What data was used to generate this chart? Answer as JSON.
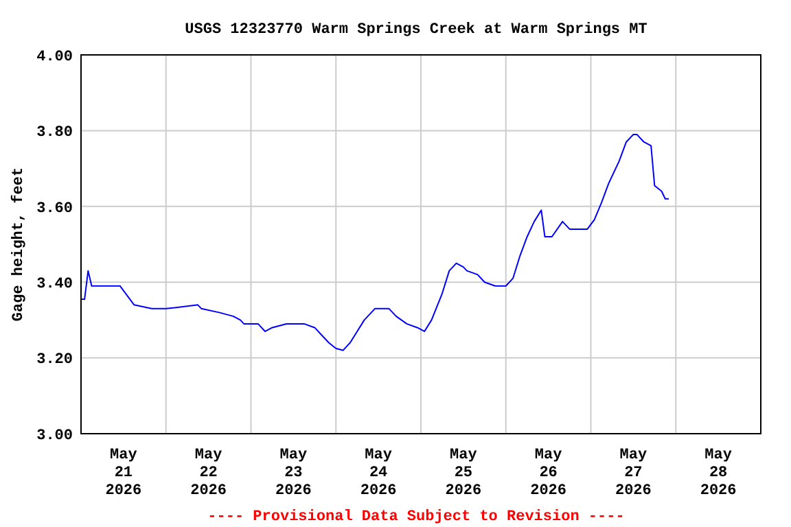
{
  "chart_data": {
    "type": "line",
    "title": "USGS 12323770 Warm Springs Creek at Warm Springs MT",
    "ylabel": "Gage height, feet",
    "annotations": [
      "---- Provisional Data Subject to Revision ----"
    ],
    "xlim": [
      "2026-05-21",
      "2026-05-29"
    ],
    "xticks": [
      {
        "value": "2026-05-22",
        "label": null
      },
      {
        "value": "2026-05-23",
        "label": null
      },
      {
        "value": "2026-05-24",
        "label": null
      },
      {
        "value": "2026-05-25",
        "label": null
      },
      {
        "value": "2026-05-26",
        "label": null
      },
      {
        "value": "2026-05-27",
        "label": null
      },
      {
        "value": "2026-05-28",
        "label": null
      },
      {
        "value": "2026-05-21T12:00",
        "label": "May\n21\n2026"
      },
      {
        "value": "2026-05-22T12:00",
        "label": "May\n22\n2026"
      },
      {
        "value": "2026-05-23T12:00",
        "label": "May\n23\n2026"
      },
      {
        "value": "2026-05-24T12:00",
        "label": "May\n24\n2026"
      },
      {
        "value": "2026-05-25T12:00",
        "label": "May\n25\n2026"
      },
      {
        "value": "2026-05-26T12:00",
        "label": "May\n26\n2026"
      },
      {
        "value": "2026-05-27T12:00",
        "label": "May\n27\n2026"
      },
      {
        "value": "2026-05-28T12:00",
        "label": "May\n28\n2026"
      }
    ],
    "ylim": [
      3.0,
      4.0
    ],
    "yticks": [
      {
        "value": 3.0,
        "label": "3.00"
      },
      {
        "value": 3.2,
        "label": "3.20"
      },
      {
        "value": 3.4,
        "label": "3.40"
      },
      {
        "value": 3.6,
        "label": "3.60"
      },
      {
        "value": 3.8,
        "label": "3.80"
      },
      {
        "value": 4.0,
        "label": "4.00"
      }
    ],
    "grid": true,
    "marker": "none",
    "line_style": "solid",
    "series": [
      {
        "color": "#0000ff",
        "x": [
          "2026-05-21T00:00",
          "2026-05-21T01:00",
          "2026-05-21T02:00",
          "2026-05-21T03:00",
          "2026-05-21T06:00",
          "2026-05-21T11:00",
          "2026-05-21T15:00",
          "2026-05-21T20:00",
          "2026-05-22T00:00",
          "2026-05-22T09:00",
          "2026-05-22T10:00",
          "2026-05-22T15:00",
          "2026-05-22T19:00",
          "2026-05-22T21:00",
          "2026-05-22T22:00",
          "2026-05-23T02:00",
          "2026-05-23T04:00",
          "2026-05-23T06:00",
          "2026-05-23T10:00",
          "2026-05-23T15:00",
          "2026-05-23T18:00",
          "2026-05-23T20:00",
          "2026-05-23T22:00",
          "2026-05-24T00:00",
          "2026-05-24T02:00",
          "2026-05-24T04:00",
          "2026-05-24T06:00",
          "2026-05-24T08:00",
          "2026-05-24T11:00",
          "2026-05-24T15:00",
          "2026-05-24T17:00",
          "2026-05-24T20:00",
          "2026-05-24T23:00",
          "2026-05-25T01:00",
          "2026-05-25T03:00",
          "2026-05-25T06:00",
          "2026-05-25T08:00",
          "2026-05-25T10:00",
          "2026-05-25T12:00",
          "2026-05-25T13:00",
          "2026-05-25T16:00",
          "2026-05-25T18:00",
          "2026-05-25T21:00",
          "2026-05-26T00:00",
          "2026-05-26T02:00",
          "2026-05-26T04:00",
          "2026-05-26T06:00",
          "2026-05-26T08:00",
          "2026-05-26T10:00",
          "2026-05-26T11:00",
          "2026-05-26T13:00",
          "2026-05-26T16:00",
          "2026-05-26T18:00",
          "2026-05-26T23:00",
          "2026-05-27T01:00",
          "2026-05-27T03:00",
          "2026-05-27T05:00",
          "2026-05-27T08:00",
          "2026-05-27T10:00",
          "2026-05-27T12:00",
          "2026-05-27T13:00",
          "2026-05-27T15:00",
          "2026-05-27T17:00",
          "2026-05-27T18:00",
          "2026-05-27T20:00",
          "2026-05-27T21:00",
          "2026-05-27T22:00"
        ],
        "values": [
          3.355,
          3.355,
          3.43,
          3.39,
          3.39,
          3.39,
          3.34,
          3.33,
          3.33,
          3.34,
          3.33,
          3.32,
          3.31,
          3.3,
          3.29,
          3.29,
          3.27,
          3.28,
          3.29,
          3.29,
          3.28,
          3.26,
          3.24,
          3.225,
          3.22,
          3.24,
          3.27,
          3.3,
          3.33,
          3.33,
          3.31,
          3.29,
          3.28,
          3.27,
          3.3,
          3.37,
          3.43,
          3.45,
          3.44,
          3.43,
          3.42,
          3.4,
          3.39,
          3.39,
          3.41,
          3.47,
          3.52,
          3.56,
          3.59,
          3.52,
          3.52,
          3.56,
          3.54,
          3.54,
          3.565,
          3.61,
          3.66,
          3.72,
          3.77,
          3.79,
          3.79,
          3.77,
          3.76,
          3.655,
          3.64,
          3.62,
          3.62
        ]
      }
    ]
  }
}
